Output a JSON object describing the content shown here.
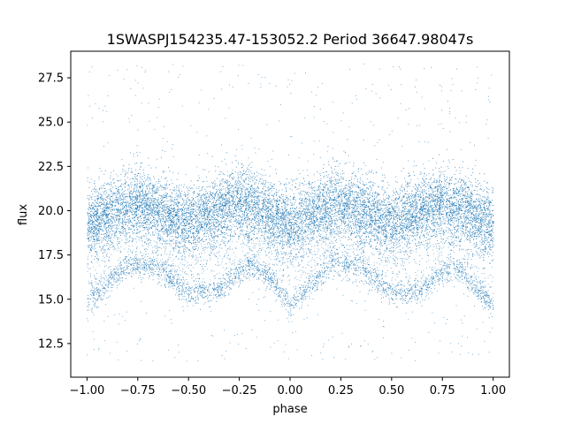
{
  "chart_data": {
    "type": "scatter",
    "title": "1SWASPJ154235.47-153052.2 Period 36647.98047s",
    "xlabel": "phase",
    "ylabel": "flux",
    "xlim": [
      -1.08,
      1.08
    ],
    "ylim": [
      10.6,
      29.0
    ],
    "xticks": [
      -1.0,
      -0.75,
      -0.5,
      -0.25,
      0.0,
      0.25,
      0.5,
      0.75,
      1.0
    ],
    "xtick_labels": [
      "−1.00",
      "−0.75",
      "−0.50",
      "−0.25",
      "0.00",
      "0.25",
      "0.50",
      "0.75",
      "1.00"
    ],
    "yticks": [
      12.5,
      15.0,
      17.5,
      20.0,
      22.5,
      25.0,
      27.5
    ],
    "ytick_labels": [
      "12.5",
      "15.0",
      "17.5",
      "20.0",
      "22.5",
      "25.0",
      "27.5"
    ],
    "grid": false,
    "point_color": "#1f77b4",
    "series_description": "dense scatter of phase-folded flux; two repeating cycles",
    "main_band": {
      "x": [
        -1.0,
        -0.75,
        -0.5,
        -0.25,
        0.0,
        0.25,
        0.5,
        0.75,
        1.0
      ],
      "y": [
        19.2,
        20.5,
        19.3,
        20.5,
        19.2,
        20.5,
        19.3,
        20.5,
        19.2
      ],
      "spread": 1.3
    },
    "lower_branch": {
      "x": [
        -1.0,
        -0.8,
        -0.65,
        -0.5,
        -0.35,
        -0.2,
        -0.1,
        0.0,
        0.2,
        0.35,
        0.5,
        0.65,
        0.8,
        1.0
      ],
      "y": [
        14.8,
        17.0,
        16.8,
        15.3,
        15.5,
        17.0,
        16.2,
        14.6,
        17.0,
        16.8,
        15.3,
        15.5,
        17.0,
        14.6
      ]
    },
    "outlier_range": [
      11.5,
      28.3
    ]
  }
}
